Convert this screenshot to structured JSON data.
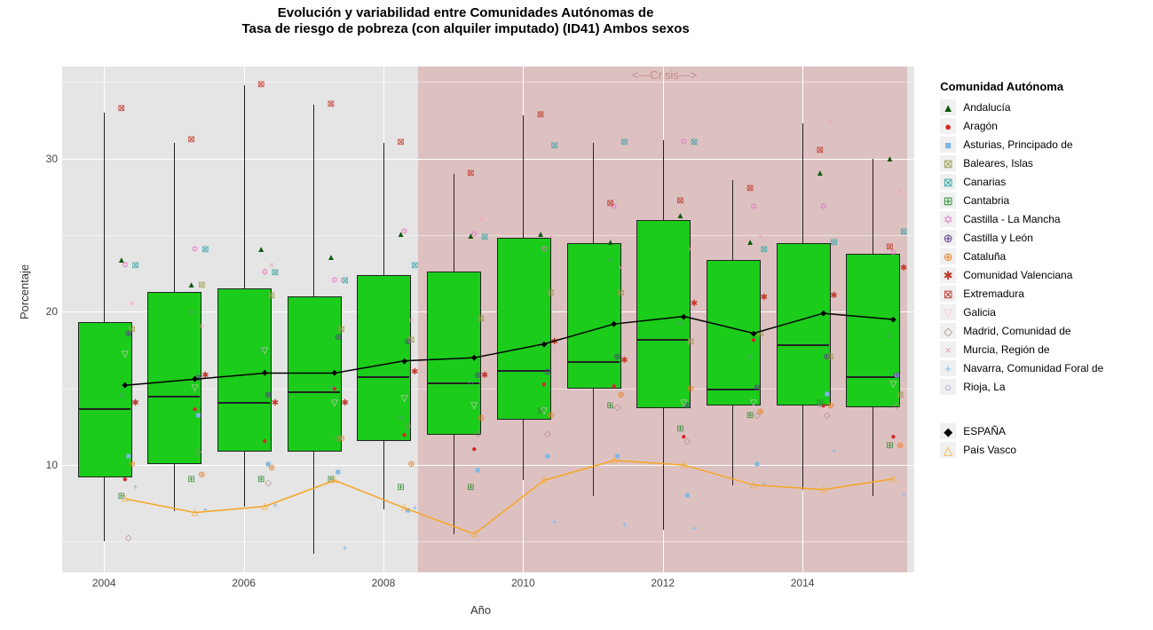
{
  "title_line1": "Evolución y variabilidad entre Comunidades Autónomas de",
  "title_line2": "Tasa de riesgo de pobreza (con alquiler imputado) (ID41) Ambos sexos",
  "title_fontsize": 15,
  "xlabel": "Año",
  "ylabel": "Porcentaje",
  "axis_label_fontsize": 13,
  "background_color": "#e5e5e5",
  "grid_color": "#ffffff",
  "box_fill": "#1bcc1b",
  "box_border": "#222222",
  "spain_line_color": "#000000",
  "paisvasco_line_color": "#f5a623",
  "crisis_band_color": "rgba(210,140,140,0.4)",
  "crisis_label": "<---Crisis--->",
  "years": [
    2004,
    2005,
    2006,
    2007,
    2008,
    2009,
    2010,
    2011,
    2012,
    2013,
    2014,
    2015
  ],
  "x_ticks": [
    2004,
    2006,
    2008,
    2010,
    2012,
    2014
  ],
  "y_ticks": [
    10,
    20,
    30
  ],
  "ylim": [
    3,
    36
  ],
  "xlim": [
    2003.4,
    2015.6
  ],
  "crisis_start": 2008.5,
  "crisis_end": 2015.5,
  "boxplots": [
    {
      "year": 2004,
      "q1": 9.3,
      "median": 13.7,
      "q3": 19.3,
      "low": 5.0,
      "high": 33.0
    },
    {
      "year": 2005,
      "q1": 10.2,
      "median": 14.5,
      "q3": 21.3,
      "low": 7.0,
      "high": 31.0
    },
    {
      "year": 2006,
      "q1": 11.0,
      "median": 14.1,
      "q3": 21.5,
      "low": 7.3,
      "high": 34.8
    },
    {
      "year": 2007,
      "q1": 11.0,
      "median": 14.8,
      "q3": 21.0,
      "low": 4.2,
      "high": 33.5
    },
    {
      "year": 2008,
      "q1": 11.7,
      "median": 15.8,
      "q3": 22.4,
      "low": 7.1,
      "high": 31.0
    },
    {
      "year": 2009,
      "q1": 12.1,
      "median": 15.4,
      "q3": 22.6,
      "low": 5.5,
      "high": 29.0
    },
    {
      "year": 2010,
      "q1": 13.1,
      "median": 16.2,
      "q3": 24.8,
      "low": 9.0,
      "high": 32.8
    },
    {
      "year": 2011,
      "q1": 15.1,
      "median": 16.8,
      "q3": 24.5,
      "low": 8.0,
      "high": 31.0
    },
    {
      "year": 2012,
      "q1": 13.8,
      "median": 18.2,
      "q3": 26.0,
      "low": 5.8,
      "high": 31.2
    },
    {
      "year": 2013,
      "q1": 14.0,
      "median": 15.0,
      "q3": 23.4,
      "low": 8.7,
      "high": 28.6
    },
    {
      "year": 2014,
      "q1": 14.0,
      "median": 17.9,
      "q3": 24.5,
      "low": 8.4,
      "high": 32.3
    },
    {
      "year": 2015,
      "q1": 13.9,
      "median": 15.8,
      "q3": 23.8,
      "low": 8.0,
      "high": 30.0
    }
  ],
  "spain_series": [
    15.2,
    15.6,
    16.0,
    16.0,
    16.8,
    17.0,
    17.9,
    19.2,
    19.7,
    18.6,
    19.9,
    19.5
  ],
  "paisvasco_series": [
    7.8,
    6.9,
    7.3,
    9.0,
    7.2,
    5.5,
    9.0,
    10.3,
    10.0,
    8.7,
    8.4,
    9.1
  ],
  "box_width": 0.75,
  "communities_points": {
    "Andalucía": {
      "glyph": "▲",
      "color": "#0d5a0d",
      "data": [
        23.3,
        21.7,
        24.0,
        23.5,
        25.0,
        24.9,
        25.0,
        24.5,
        26.2,
        24.5,
        29.0,
        29.9
      ]
    },
    "Aragón": {
      "glyph": "●",
      "color": "#d62728",
      "data": [
        9.0,
        13.6,
        11.5,
        14.9,
        11.9,
        11.0,
        15.2,
        15.1,
        11.8,
        18.1,
        13.8,
        11.8
      ]
    },
    "Asturias": {
      "glyph": "■",
      "color": "#7eb8e4",
      "data": [
        10.5,
        13.2,
        10.0,
        9.5,
        7.0,
        9.6,
        10.5,
        10.5,
        8.0,
        10.0,
        14.6,
        15.8
      ]
    },
    "Baleares": {
      "glyph": "⊠",
      "color": "#9e9e52",
      "data": [
        18.8,
        21.7,
        21.0,
        18.8,
        18.1,
        19.5,
        21.2,
        21.2,
        18.0,
        18.5,
        17.0,
        14.5
      ]
    },
    "Canarias": {
      "glyph": "⊠",
      "color": "#3aa5a5",
      "data": [
        23.0,
        24.0,
        22.5,
        22.0,
        23.0,
        24.8,
        30.8,
        31.0,
        31.0,
        24.0,
        24.5,
        25.2
      ]
    },
    "Cantabria": {
      "glyph": "⊞",
      "color": "#2e8b2e",
      "data": [
        7.9,
        9.0,
        9.0,
        9.0,
        8.5,
        8.5,
        13.5,
        13.8,
        12.3,
        13.2,
        14.0,
        11.2
      ]
    },
    "CastillaMancha": {
      "glyph": "✡",
      "color": "#e377c2",
      "data": [
        23.0,
        24.0,
        22.5,
        22.0,
        25.2,
        25.0,
        24.0,
        26.8,
        31.0,
        26.8,
        26.8,
        23.8
      ]
    },
    "CastillaLeon": {
      "glyph": "⊕",
      "color": "#5a3a8a",
      "data": [
        18.5,
        15.6,
        14.5,
        18.3,
        18.0,
        15.8,
        16.0,
        17.0,
        13.8,
        15.0,
        17.0,
        15.8
      ]
    },
    "Cataluña": {
      "glyph": "⊕",
      "color": "#e67e22",
      "data": [
        10.0,
        9.3,
        9.8,
        11.7,
        10.0,
        13.0,
        13.2,
        14.5,
        14.9,
        13.4,
        13.8,
        11.2
      ]
    },
    "ComValenciana": {
      "glyph": "✱",
      "color": "#c0392b",
      "data": [
        14.0,
        15.8,
        14.0,
        14.0,
        16.0,
        15.8,
        18.0,
        16.8,
        20.5,
        20.9,
        21.0,
        22.8
      ]
    },
    "Extremadura": {
      "glyph": "⊠",
      "color": "#c0392b",
      "data": [
        33.2,
        31.2,
        34.8,
        33.5,
        31.0,
        29.0,
        32.8,
        27.0,
        27.2,
        28.0,
        30.5,
        24.2
      ]
    },
    "Galicia": {
      "glyph": "▽",
      "color": "#f7c6d9",
      "data": [
        17.2,
        15.0,
        17.4,
        14.0,
        14.3,
        13.8,
        13.5,
        14.0,
        14.0,
        14.0,
        13.5,
        15.2
      ]
    },
    "Madrid": {
      "glyph": "◇",
      "color": "#b08080",
      "data": [
        5.2,
        10.8,
        8.8,
        11.7,
        12.5,
        12.0,
        12.0,
        13.7,
        11.5,
        13.2,
        13.2,
        13.8
      ]
    },
    "Murcia": {
      "glyph": "×",
      "color": "#f29bb7",
      "data": [
        20.5,
        19.0,
        23.0,
        22.0,
        19.4,
        26.0,
        24.8,
        22.8,
        24.0,
        24.8,
        32.3,
        27.8
      ]
    },
    "Navarra": {
      "glyph": "+",
      "color": "#7eb8e4",
      "data": [
        8.5,
        7.0,
        7.3,
        4.5,
        7.1,
        5.9,
        6.2,
        6.0,
        5.8,
        8.7,
        10.8,
        8.0
      ]
    },
    "Rioja": {
      "glyph": "○",
      "color": "#8e7cc3",
      "data": [
        14.5,
        19.9,
        17.5,
        15.0,
        13.0,
        15.3,
        18.0,
        23.3,
        19.2,
        17.0,
        13.8,
        18.4
      ]
    }
  },
  "legend": {
    "title": "Comunidad Autónoma",
    "items": [
      {
        "label": "Andalucía",
        "glyph": "▲",
        "color": "#0d5a0d"
      },
      {
        "label": "Aragón",
        "glyph": "●",
        "color": "#d62728"
      },
      {
        "label": "Asturias, Principado de",
        "glyph": "■",
        "color": "#7eb8e4"
      },
      {
        "label": "Baleares, Islas",
        "glyph": "⊠",
        "color": "#9e9e52"
      },
      {
        "label": "Canarias",
        "glyph": "⊠",
        "color": "#3aa5a5"
      },
      {
        "label": "Cantabria",
        "glyph": "⊞",
        "color": "#2e8b2e"
      },
      {
        "label": "Castilla - La Mancha",
        "glyph": "✡",
        "color": "#e377c2"
      },
      {
        "label": "Castilla y León",
        "glyph": "⊕",
        "color": "#5a3a8a"
      },
      {
        "label": "Cataluña",
        "glyph": "⊕",
        "color": "#e67e22"
      },
      {
        "label": "Comunidad Valenciana",
        "glyph": "✱",
        "color": "#c0392b"
      },
      {
        "label": "Extremadura",
        "glyph": "⊠",
        "color": "#c0392b"
      },
      {
        "label": "Galicia",
        "glyph": "▽",
        "color": "#f7c6d9"
      },
      {
        "label": "Madrid, Comunidad de",
        "glyph": "◇",
        "color": "#b08080"
      },
      {
        "label": "Murcia, Región de",
        "glyph": "×",
        "color": "#f29bb7"
      },
      {
        "label": "Navarra, Comunidad Foral de",
        "glyph": "+",
        "color": "#7eb8e4"
      },
      {
        "label": "Rioja, La",
        "glyph": "○",
        "color": "#8e7cc3"
      }
    ]
  },
  "legend2": {
    "items": [
      {
        "label": "ESPAÑA",
        "glyph": "◆",
        "color": "#000000"
      },
      {
        "label": "País Vasco",
        "glyph": "△",
        "color": "#f5a623"
      }
    ]
  }
}
